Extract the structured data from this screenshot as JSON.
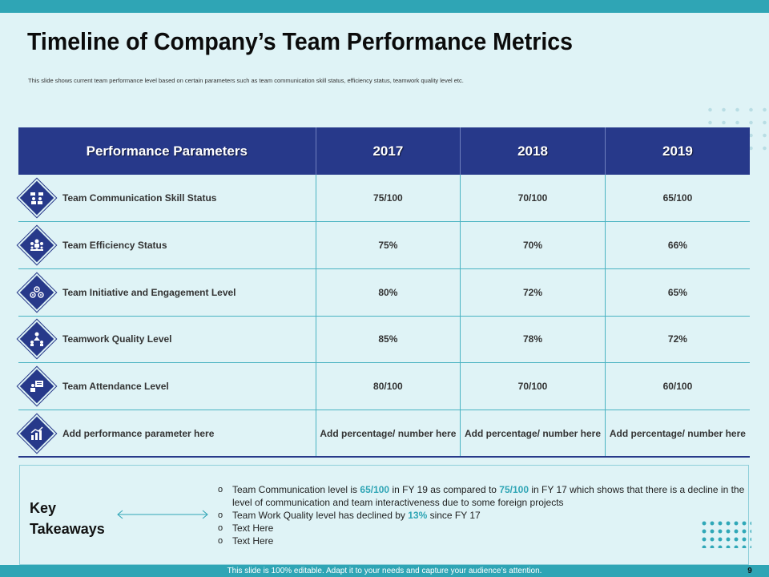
{
  "title": "Timeline of Company’s Team Performance Metrics",
  "subtitle": "This slide shows current team performance level based on certain parameters such as team communication skill status, efficiency status, teamwork quality level etc.",
  "colors": {
    "accent": "#2fa5b5",
    "navy": "#27398a",
    "background": "#dff3f6"
  },
  "table": {
    "headers": [
      "Performance Parameters",
      "2017",
      "2018",
      "2019"
    ],
    "rows": [
      {
        "icon": "team-communication-icon",
        "label": "Team Communication Skill Status",
        "values": [
          "75/100",
          "70/100",
          "65/100"
        ]
      },
      {
        "icon": "team-efficiency-icon",
        "label": "Team Efficiency Status",
        "values": [
          "75%",
          "70%",
          "66%"
        ]
      },
      {
        "icon": "team-engagement-icon",
        "label": "Team Initiative and Engagement Level",
        "values": [
          "80%",
          "72%",
          "65%"
        ]
      },
      {
        "icon": "teamwork-quality-icon",
        "label": "Teamwork Quality  Level",
        "values": [
          "85%",
          "78%",
          "72%"
        ]
      },
      {
        "icon": "team-attendance-icon",
        "label": "Team Attendance Level",
        "values": [
          "80/100",
          "70/100",
          "60/100"
        ]
      },
      {
        "icon": "add-parameter-icon",
        "label": "Add performance parameter here",
        "values": [
          "Add percentage/ number here",
          "Add percentage/ number here",
          "Add percentage/ number here"
        ]
      }
    ]
  },
  "key_takeaways": {
    "label": "Key Takeaways",
    "items": [
      {
        "parts": [
          "Team Communication level is ",
          "65/100",
          " in FY 19 as compared to ",
          "75/100",
          " in FY 17 which shows that there is a decline in the level of communication and team interactiveness due to some foreign projects"
        ]
      },
      {
        "parts": [
          "Team Work Quality level has declined by ",
          "13%",
          " since FY 17"
        ]
      },
      {
        "parts": [
          "Text Here"
        ]
      },
      {
        "parts": [
          "Text Here"
        ]
      }
    ]
  },
  "footer": {
    "text": "This slide is 100% editable. Adapt it to your needs and capture your audience’s attention.",
    "page_number": "9"
  }
}
